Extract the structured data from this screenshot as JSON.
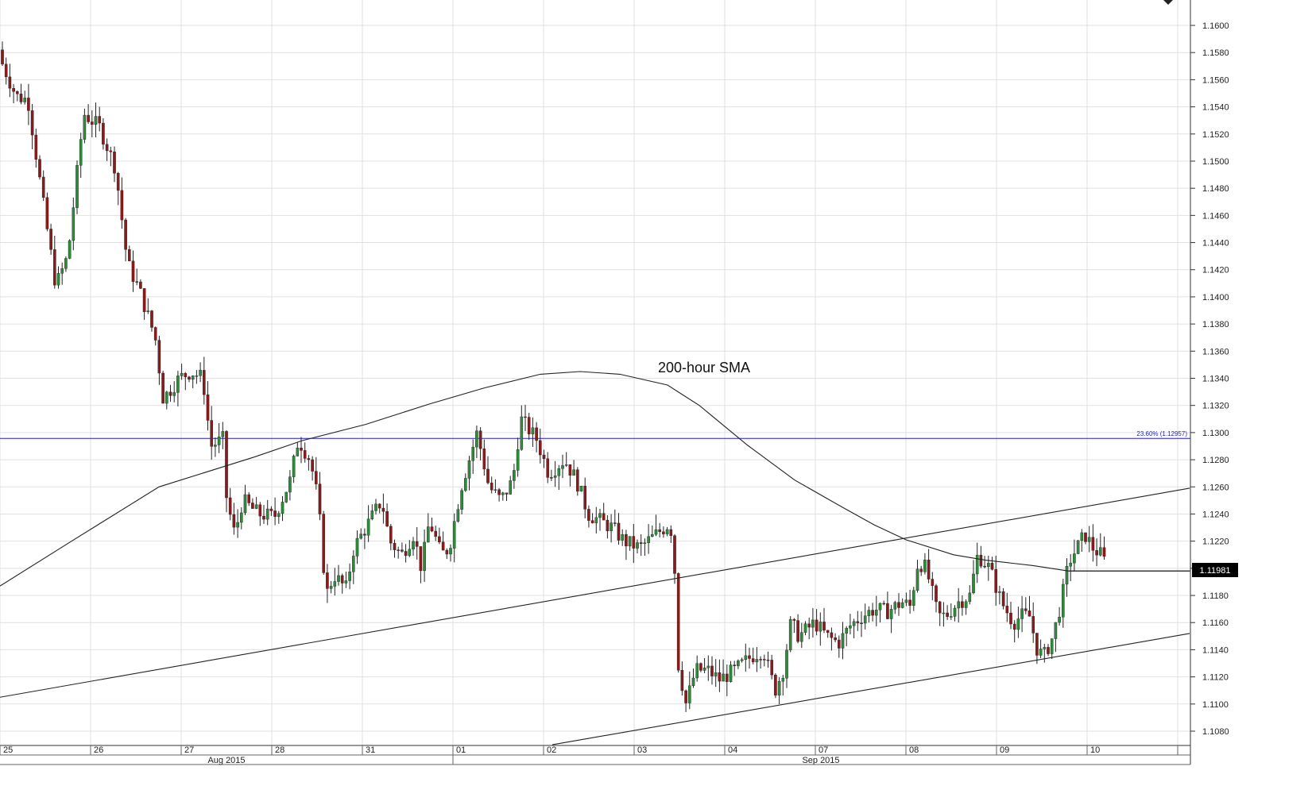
{
  "chart_data": {
    "type": "candlestick",
    "interval": "hourly",
    "ylim": [
      1.107,
      1.1625
    ],
    "y_ticks": [
      "1.1080",
      "1.1100",
      "1.1120",
      "1.1140",
      "1.1160",
      "1.1180",
      "1.1200",
      "1.1220",
      "1.1240",
      "1.1260",
      "1.1280",
      "1.1300",
      "1.1320",
      "1.1340",
      "1.1360",
      "1.1380",
      "1.1400",
      "1.1420",
      "1.1440",
      "1.1460",
      "1.1480",
      "1.1500",
      "1.1520",
      "1.1540",
      "1.1560",
      "1.1580",
      "1.1600"
    ],
    "day_labels": [
      "25",
      "26",
      "27",
      "28",
      "31",
      "01",
      "02",
      "03",
      "04",
      "07",
      "08",
      "09",
      "10"
    ],
    "month_labels": [
      "Aug 2015",
      "Sep 2015"
    ],
    "annotation": "200-hour SMA",
    "fib_level": {
      "label": "23.60% (1.12957)",
      "value": 1.12957
    },
    "last_price": {
      "label": "1.11981",
      "value": 1.11981
    },
    "sma_points": [
      [
        0,
        1.1187
      ],
      [
        90,
        1.122
      ],
      [
        200,
        1.126
      ],
      [
        320,
        1.1282
      ],
      [
        380,
        1.1294
      ],
      [
        460,
        1.1306
      ],
      [
        540,
        1.1321
      ],
      [
        610,
        1.1333
      ],
      [
        680,
        1.1343
      ],
      [
        730,
        1.1345
      ],
      [
        780,
        1.1343
      ],
      [
        840,
        1.1335
      ],
      [
        880,
        1.132
      ],
      [
        940,
        1.1291
      ],
      [
        1000,
        1.1265
      ],
      [
        1060,
        1.1245
      ],
      [
        1100,
        1.1232
      ],
      [
        1140,
        1.1221
      ],
      [
        1200,
        1.121
      ],
      [
        1240,
        1.1206
      ],
      [
        1300,
        1.1202
      ],
      [
        1345,
        1.1198
      ],
      [
        1400,
        1.1198
      ],
      [
        1497,
        1.1198
      ]
    ],
    "trendlines": [
      {
        "name": "upper-channel",
        "points": [
          [
            0,
            1.1105
          ],
          [
            1497,
            1.1259
          ]
        ]
      },
      {
        "name": "lower-channel",
        "points": [
          [
            695,
            1.107
          ],
          [
            1497,
            1.1152
          ]
        ]
      }
    ],
    "candle_path": [
      [
        0,
        1.1582
      ],
      [
        25,
        1.1548
      ],
      [
        40,
        1.1545
      ],
      [
        60,
        1.1465
      ],
      [
        75,
        1.1408
      ],
      [
        90,
        1.143
      ],
      [
        110,
        1.1535
      ],
      [
        130,
        1.1525
      ],
      [
        150,
        1.1495
      ],
      [
        165,
        1.1425
      ],
      [
        180,
        1.1405
      ],
      [
        200,
        1.137
      ],
      [
        210,
        1.1325
      ],
      [
        230,
        1.134
      ],
      [
        245,
        1.1345
      ],
      [
        260,
        1.134
      ],
      [
        270,
        1.129
      ],
      [
        285,
        1.1295
      ],
      [
        290,
        1.125
      ],
      [
        300,
        1.1225
      ],
      [
        310,
        1.125
      ],
      [
        330,
        1.124
      ],
      [
        350,
        1.1238
      ],
      [
        370,
        1.1265
      ],
      [
        380,
        1.1295
      ],
      [
        395,
        1.128
      ],
      [
        405,
        1.125
      ],
      [
        415,
        1.118
      ],
      [
        425,
        1.1195
      ],
      [
        440,
        1.1185
      ],
      [
        450,
        1.1215
      ],
      [
        470,
        1.1235
      ],
      [
        485,
        1.125
      ],
      [
        495,
        1.122
      ],
      [
        510,
        1.121
      ],
      [
        525,
        1.1225
      ],
      [
        535,
        1.12
      ],
      [
        545,
        1.1235
      ],
      [
        560,
        1.121
      ],
      [
        570,
        1.1215
      ],
      [
        585,
        1.126
      ],
      [
        605,
        1.13
      ],
      [
        620,
        1.126
      ],
      [
        635,
        1.125
      ],
      [
        650,
        1.1265
      ],
      [
        660,
        1.131
      ],
      [
        680,
        1.1295
      ],
      [
        695,
        1.127
      ],
      [
        715,
        1.128
      ],
      [
        730,
        1.1265
      ],
      [
        745,
        1.124
      ],
      [
        760,
        1.1235
      ],
      [
        775,
        1.123
      ],
      [
        790,
        1.122
      ],
      [
        810,
        1.1215
      ],
      [
        830,
        1.1225
      ],
      [
        845,
        1.1232
      ],
      [
        852,
        1.1225
      ],
      [
        858,
        1.113
      ],
      [
        868,
        1.11
      ],
      [
        880,
        1.1125
      ],
      [
        895,
        1.1125
      ],
      [
        910,
        1.1118
      ],
      [
        930,
        1.1125
      ],
      [
        950,
        1.1135
      ],
      [
        965,
        1.114
      ],
      [
        980,
        1.111
      ],
      [
        990,
        1.1125
      ],
      [
        1000,
        1.116
      ],
      [
        1010,
        1.115
      ],
      [
        1030,
        1.116
      ],
      [
        1045,
        1.115
      ],
      [
        1060,
        1.1145
      ],
      [
        1075,
        1.1158
      ],
      [
        1090,
        1.1165
      ],
      [
        1105,
        1.117
      ],
      [
        1120,
        1.1168
      ],
      [
        1140,
        1.1175
      ],
      [
        1150,
        1.1172
      ],
      [
        1160,
        1.1205
      ],
      [
        1170,
        1.12
      ],
      [
        1185,
        1.1165
      ],
      [
        1195,
        1.1165
      ],
      [
        1210,
        1.1175
      ],
      [
        1225,
        1.118
      ],
      [
        1235,
        1.121
      ],
      [
        1250,
        1.12
      ],
      [
        1265,
        1.1175
      ],
      [
        1280,
        1.116
      ],
      [
        1290,
        1.1165
      ],
      [
        1300,
        1.1165
      ],
      [
        1310,
        1.114
      ],
      [
        1318,
        1.1135
      ],
      [
        1330,
        1.115
      ],
      [
        1340,
        1.1175
      ],
      [
        1350,
        1.1205
      ],
      [
        1360,
        1.1215
      ],
      [
        1370,
        1.1225
      ],
      [
        1380,
        1.1215
      ],
      [
        1390,
        1.121
      ],
      [
        1395,
        1.1205
      ]
    ]
  }
}
